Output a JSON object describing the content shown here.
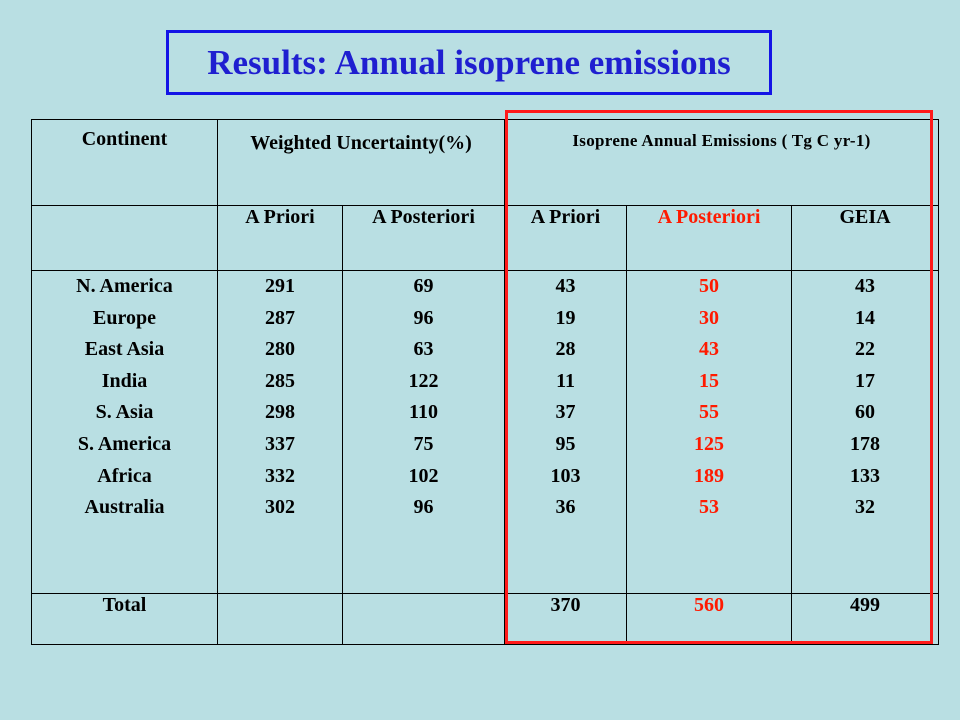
{
  "title": "Results: Annual isoprene emissions",
  "colors": {
    "background": "#b9dfe3",
    "title": "#1f1fd0",
    "highlight": "#ff1a00"
  },
  "table": {
    "header1": {
      "continent": "Continent",
      "weighted_uncertainty": "Weighted Uncertainty(%)",
      "isoprene_emissions": "Isoprene Annual Emissions ( Tg C yr-1)"
    },
    "header2": {
      "wu_a_priori": "A Priori",
      "wu_a_posteriori": "A Posteriori",
      "em_a_priori": "A Priori",
      "em_a_posteriori": "A Posteriori",
      "geia": "GEIA"
    },
    "continents": [
      "N. America",
      "Europe",
      "East Asia",
      "India",
      "S. Asia",
      "S. America",
      "Africa",
      "Australia"
    ],
    "wu_a_priori": [
      "291",
      "287",
      "280",
      "285",
      "298",
      "337",
      "332",
      "302"
    ],
    "wu_a_posteriori": [
      "69",
      "96",
      "63",
      "122",
      "110",
      "75",
      "102",
      "96"
    ],
    "em_a_priori": [
      "43",
      "19",
      "28",
      "11",
      "37",
      "95",
      "103",
      "36"
    ],
    "em_a_posteriori": [
      "50",
      "30",
      "43",
      "15",
      "55",
      "125",
      "189",
      "53"
    ],
    "geia": [
      "43",
      "14",
      "22",
      "17",
      "60",
      "178",
      "133",
      "32"
    ],
    "total": {
      "label": "Total",
      "em_a_priori": "370",
      "em_a_posteriori": "560",
      "geia": "499"
    }
  }
}
